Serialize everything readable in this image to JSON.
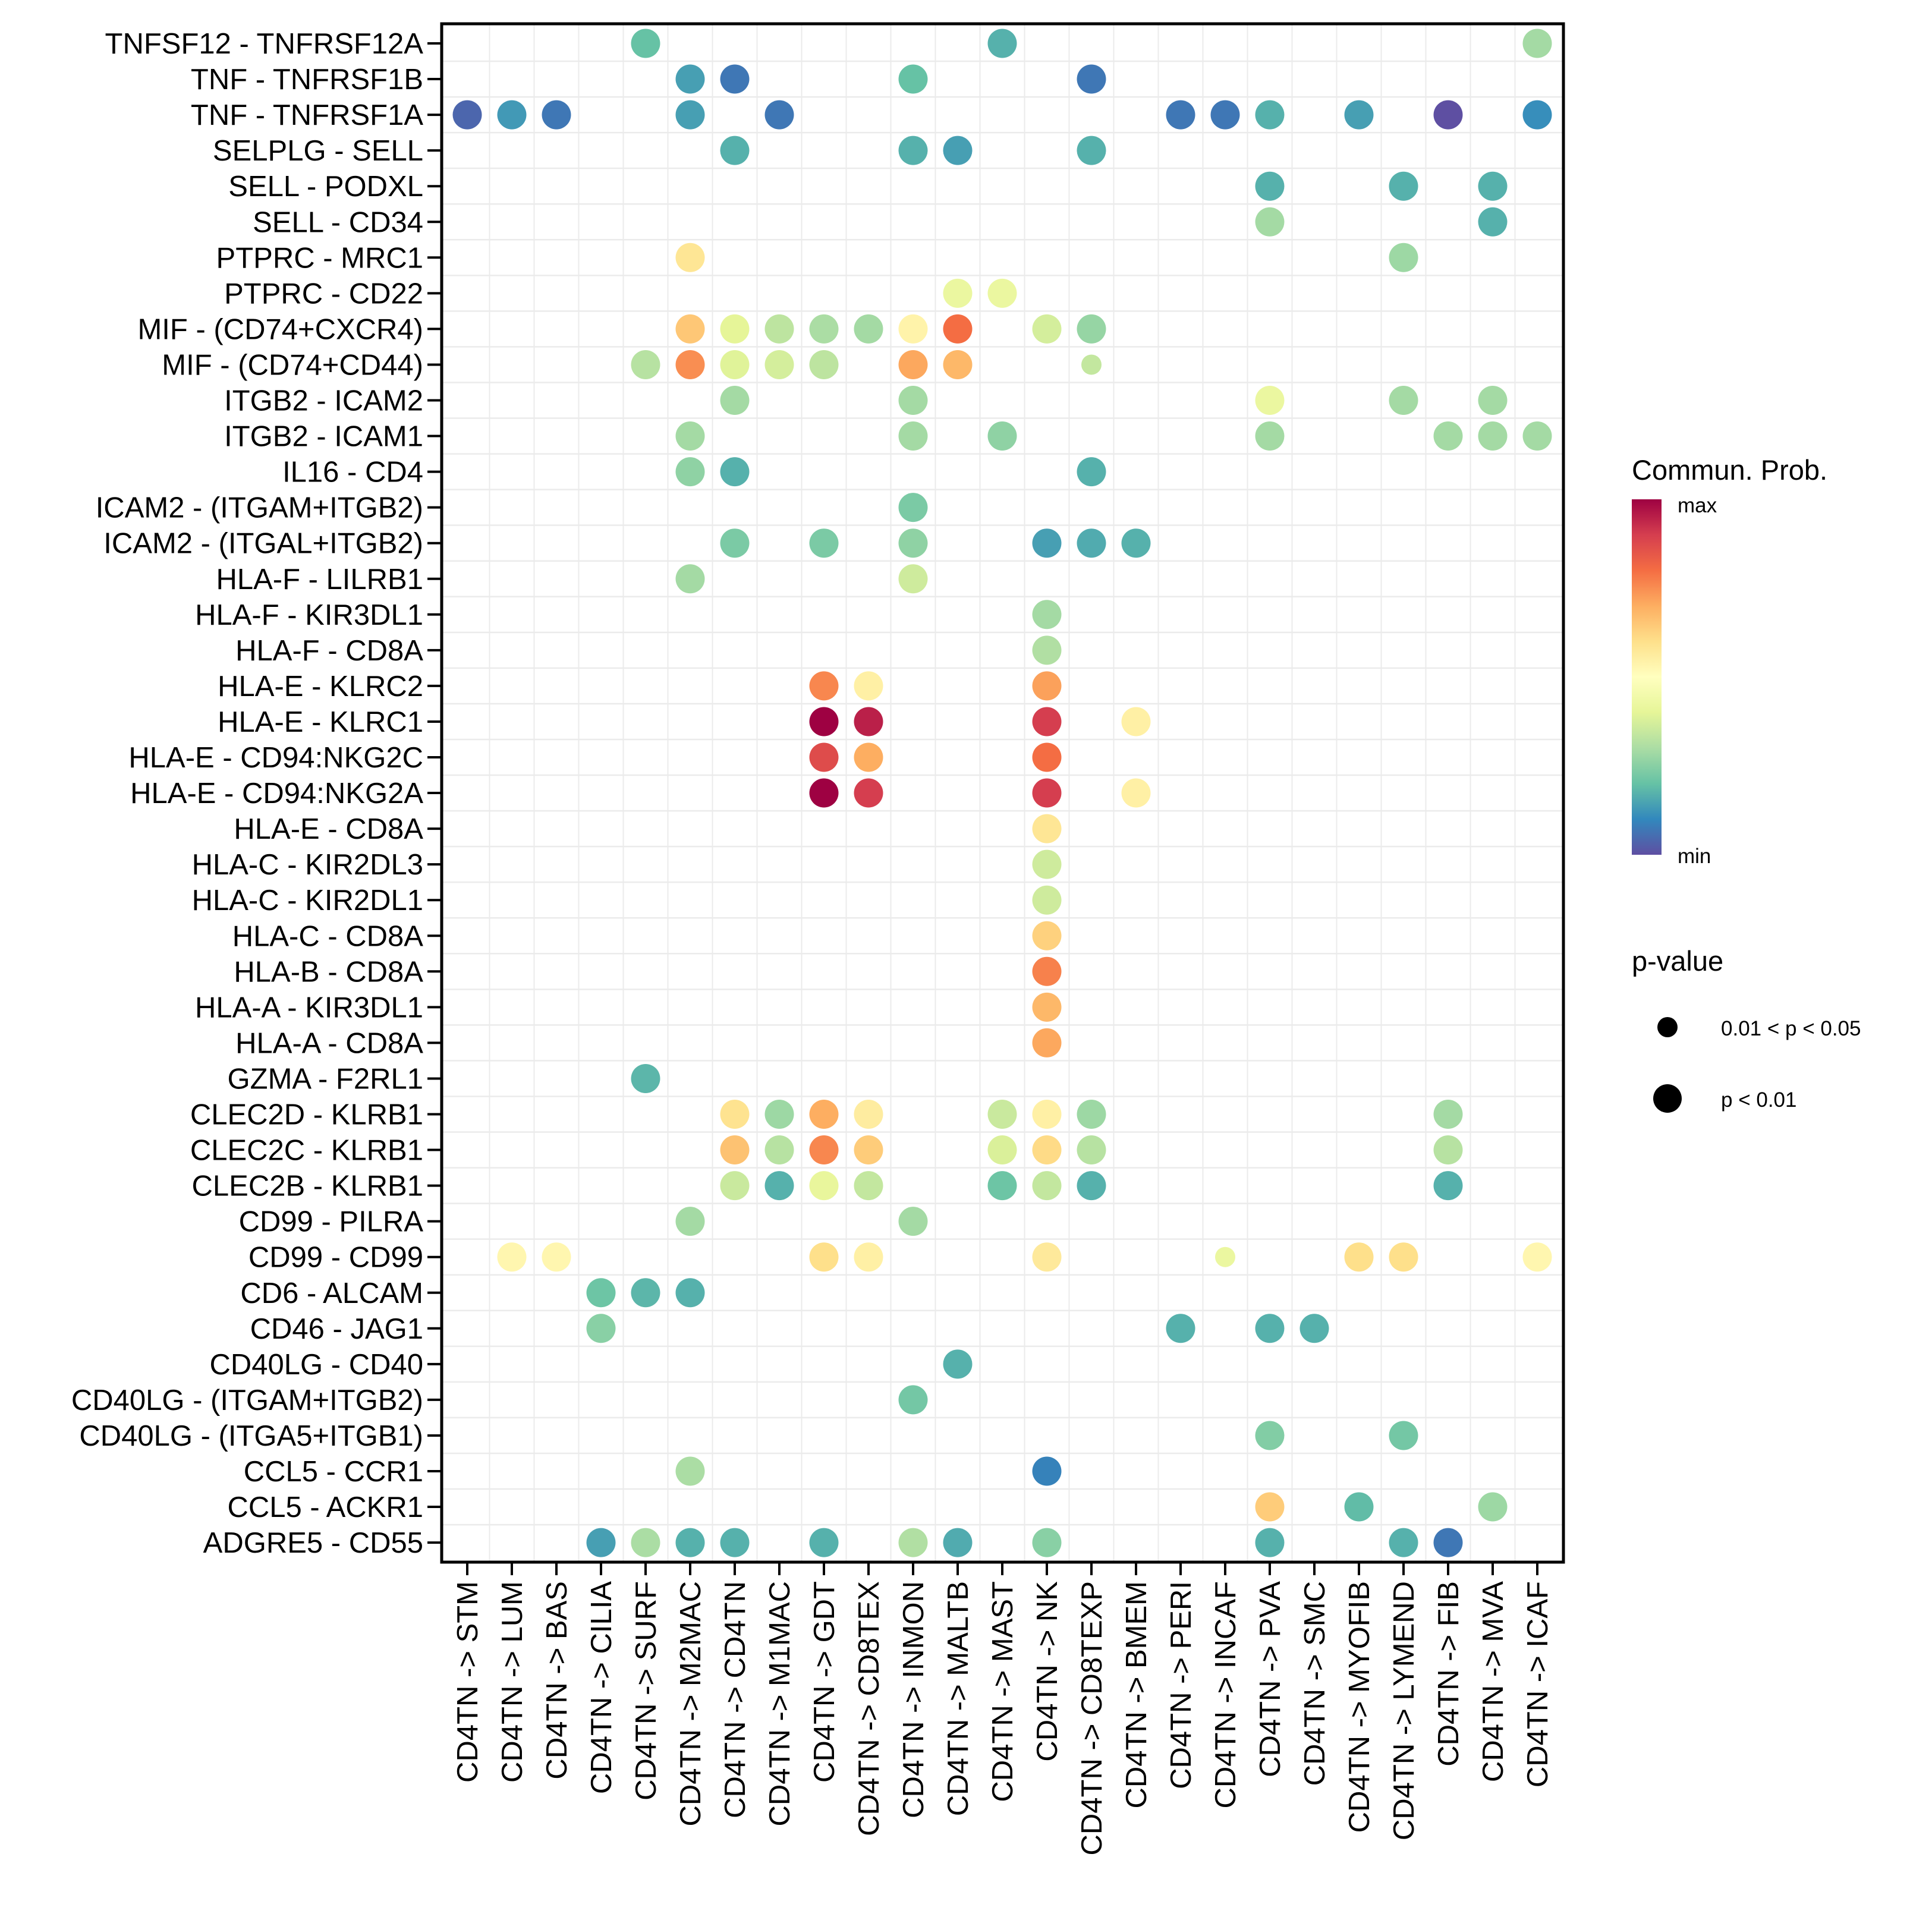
{
  "chart_data": {
    "type": "scatter",
    "subtype": "dot-matrix",
    "title": "",
    "xlabel": "",
    "ylabel": "",
    "grid": true,
    "x_categories": [
      "CD4TN -> STM",
      "CD4TN -> LUM",
      "CD4TN -> BAS",
      "CD4TN -> CILIA",
      "CD4TN -> SURF",
      "CD4TN -> M2MAC",
      "CD4TN -> CD4TN",
      "CD4TN -> M1MAC",
      "CD4TN -> GDT",
      "CD4TN -> CD8TEX",
      "CD4TN -> INMON",
      "CD4TN -> MALTB",
      "CD4TN -> MAST",
      "CD4TN -> NK",
      "CD4TN -> CD8TEXP",
      "CD4TN -> BMEM",
      "CD4TN -> PERI",
      "CD4TN -> INCAF",
      "CD4TN -> PVA",
      "CD4TN -> SMC",
      "CD4TN -> MYOFIB",
      "CD4TN -> LYMEND",
      "CD4TN -> FIB",
      "CD4TN -> MVA",
      "CD4TN -> ICAF"
    ],
    "y_categories": [
      "TNFSF12 - TNFRSF12A",
      "TNF - TNFRSF1B",
      "TNF - TNFRSF1A",
      "SELPLG - SELL",
      "SELL - PODXL",
      "SELL - CD34",
      "PTPRC - MRC1",
      "PTPRC - CD22",
      "MIF - (CD74+CXCR4)",
      "MIF - (CD74+CD44)",
      "ITGB2 - ICAM2",
      "ITGB2 - ICAM1",
      "IL16 - CD4",
      "ICAM2 - (ITGAM+ITGB2)",
      "ICAM2 - (ITGAL+ITGB2)",
      "HLA-F - LILRB1",
      "HLA-F - KIR3DL1",
      "HLA-F - CD8A",
      "HLA-E - KLRC2",
      "HLA-E - KLRC1",
      "HLA-E - CD94:NKG2C",
      "HLA-E - CD94:NKG2A",
      "HLA-E - CD8A",
      "HLA-C - KIR2DL3",
      "HLA-C - KIR2DL1",
      "HLA-C - CD8A",
      "HLA-B - CD8A",
      "HLA-A - KIR3DL1",
      "HLA-A - CD8A",
      "GZMA - F2RL1",
      "CLEC2D - KLRB1",
      "CLEC2C - KLRB1",
      "CLEC2B - KLRB1",
      "CD99 - PILRA",
      "CD99 - CD99",
      "CD6 - ALCAM",
      "CD46 - JAG1",
      "CD40LG - CD40",
      "CD40LG - (ITGAM+ITGB2)",
      "CD40LG - (ITGA5+ITGB1)",
      "CCL5 - CCR1",
      "CCL5 - ACKR1",
      "ADGRE5 - CD55"
    ],
    "value_scale": "relative communication probability, 0 = min, 1 = max",
    "points_fields": [
      "y_index",
      "x_index",
      "prob",
      "pvalue_class"
    ],
    "points": [
      [
        0,
        4,
        0.2,
        1
      ],
      [
        0,
        12,
        0.17,
        1
      ],
      [
        0,
        24,
        0.29,
        1
      ],
      [
        1,
        5,
        0.14,
        1
      ],
      [
        1,
        6,
        0.07,
        1
      ],
      [
        1,
        10,
        0.2,
        1
      ],
      [
        1,
        14,
        0.07,
        1
      ],
      [
        2,
        0,
        0.04,
        1
      ],
      [
        2,
        1,
        0.13,
        1
      ],
      [
        2,
        2,
        0.07,
        1
      ],
      [
        2,
        5,
        0.14,
        1
      ],
      [
        2,
        7,
        0.07,
        1
      ],
      [
        2,
        16,
        0.07,
        1
      ],
      [
        2,
        17,
        0.07,
        1
      ],
      [
        2,
        18,
        0.17,
        1
      ],
      [
        2,
        20,
        0.14,
        1
      ],
      [
        2,
        22,
        0.0,
        1
      ],
      [
        2,
        24,
        0.11,
        1
      ],
      [
        3,
        6,
        0.17,
        1
      ],
      [
        3,
        10,
        0.17,
        1
      ],
      [
        3,
        11,
        0.14,
        1
      ],
      [
        3,
        14,
        0.17,
        1
      ],
      [
        4,
        18,
        0.17,
        1
      ],
      [
        4,
        21,
        0.17,
        1
      ],
      [
        4,
        23,
        0.17,
        1
      ],
      [
        5,
        18,
        0.29,
        1
      ],
      [
        5,
        23,
        0.17,
        1
      ],
      [
        6,
        5,
        0.58,
        1
      ],
      [
        6,
        21,
        0.28,
        1
      ],
      [
        7,
        11,
        0.42,
        1
      ],
      [
        7,
        12,
        0.42,
        1
      ],
      [
        8,
        5,
        0.65,
        1
      ],
      [
        8,
        6,
        0.4,
        1
      ],
      [
        8,
        7,
        0.33,
        1
      ],
      [
        8,
        8,
        0.3,
        1
      ],
      [
        8,
        9,
        0.29,
        1
      ],
      [
        8,
        10,
        0.54,
        1
      ],
      [
        8,
        11,
        0.8,
        1
      ],
      [
        8,
        13,
        0.37,
        1
      ],
      [
        8,
        14,
        0.27,
        1
      ],
      [
        9,
        4,
        0.32,
        1
      ],
      [
        9,
        5,
        0.75,
        1
      ],
      [
        9,
        6,
        0.39,
        1
      ],
      [
        9,
        7,
        0.37,
        1
      ],
      [
        9,
        8,
        0.33,
        1
      ],
      [
        9,
        10,
        0.71,
        1
      ],
      [
        9,
        11,
        0.68,
        1
      ],
      [
        9,
        14,
        0.34,
        0
      ],
      [
        10,
        6,
        0.29,
        1
      ],
      [
        10,
        10,
        0.29,
        1
      ],
      [
        10,
        18,
        0.42,
        1
      ],
      [
        10,
        21,
        0.29,
        1
      ],
      [
        10,
        23,
        0.29,
        1
      ],
      [
        11,
        5,
        0.29,
        1
      ],
      [
        11,
        10,
        0.29,
        1
      ],
      [
        11,
        12,
        0.26,
        1
      ],
      [
        11,
        18,
        0.29,
        1
      ],
      [
        11,
        22,
        0.29,
        1
      ],
      [
        11,
        23,
        0.29,
        1
      ],
      [
        11,
        24,
        0.29,
        1
      ],
      [
        12,
        5,
        0.26,
        1
      ],
      [
        12,
        6,
        0.17,
        1
      ],
      [
        12,
        14,
        0.17,
        1
      ],
      [
        13,
        10,
        0.23,
        1
      ],
      [
        14,
        6,
        0.23,
        1
      ],
      [
        14,
        8,
        0.23,
        1
      ],
      [
        14,
        10,
        0.26,
        1
      ],
      [
        14,
        13,
        0.14,
        1
      ],
      [
        14,
        14,
        0.16,
        1
      ],
      [
        14,
        15,
        0.17,
        1
      ],
      [
        15,
        5,
        0.29,
        1
      ],
      [
        15,
        10,
        0.36,
        1
      ],
      [
        16,
        13,
        0.29,
        1
      ],
      [
        17,
        13,
        0.31,
        1
      ],
      [
        18,
        8,
        0.76,
        1
      ],
      [
        18,
        9,
        0.55,
        1
      ],
      [
        18,
        13,
        0.72,
        1
      ],
      [
        19,
        8,
        1.0,
        1
      ],
      [
        19,
        9,
        0.95,
        1
      ],
      [
        19,
        13,
        0.9,
        1
      ],
      [
        19,
        15,
        0.55,
        1
      ],
      [
        20,
        8,
        0.87,
        1
      ],
      [
        20,
        9,
        0.7,
        1
      ],
      [
        20,
        13,
        0.8,
        1
      ],
      [
        21,
        8,
        1.0,
        1
      ],
      [
        21,
        9,
        0.9,
        1
      ],
      [
        21,
        13,
        0.9,
        1
      ],
      [
        21,
        15,
        0.55,
        1
      ],
      [
        22,
        13,
        0.58,
        1
      ],
      [
        23,
        13,
        0.36,
        1
      ],
      [
        24,
        13,
        0.36,
        1
      ],
      [
        25,
        13,
        0.63,
        1
      ],
      [
        26,
        13,
        0.77,
        1
      ],
      [
        27,
        13,
        0.68,
        1
      ],
      [
        28,
        13,
        0.71,
        1
      ],
      [
        29,
        4,
        0.18,
        1
      ],
      [
        30,
        6,
        0.59,
        1
      ],
      [
        30,
        7,
        0.28,
        1
      ],
      [
        30,
        8,
        0.7,
        1
      ],
      [
        30,
        9,
        0.56,
        1
      ],
      [
        30,
        12,
        0.35,
        1
      ],
      [
        30,
        13,
        0.55,
        1
      ],
      [
        30,
        14,
        0.28,
        1
      ],
      [
        30,
        22,
        0.29,
        1
      ],
      [
        31,
        6,
        0.66,
        1
      ],
      [
        31,
        7,
        0.32,
        1
      ],
      [
        31,
        8,
        0.76,
        1
      ],
      [
        31,
        9,
        0.64,
        1
      ],
      [
        31,
        12,
        0.38,
        1
      ],
      [
        31,
        13,
        0.61,
        1
      ],
      [
        31,
        14,
        0.32,
        1
      ],
      [
        31,
        22,
        0.32,
        1
      ],
      [
        32,
        6,
        0.35,
        1
      ],
      [
        32,
        7,
        0.17,
        1
      ],
      [
        32,
        8,
        0.41,
        1
      ],
      [
        32,
        9,
        0.34,
        1
      ],
      [
        32,
        12,
        0.21,
        1
      ],
      [
        32,
        13,
        0.34,
        1
      ],
      [
        32,
        14,
        0.17,
        1
      ],
      [
        32,
        22,
        0.17,
        1
      ],
      [
        33,
        5,
        0.29,
        1
      ],
      [
        33,
        10,
        0.29,
        1
      ],
      [
        34,
        1,
        0.53,
        1
      ],
      [
        34,
        2,
        0.53,
        1
      ],
      [
        34,
        8,
        0.6,
        1
      ],
      [
        34,
        9,
        0.55,
        1
      ],
      [
        34,
        13,
        0.57,
        1
      ],
      [
        34,
        17,
        0.42,
        0
      ],
      [
        34,
        20,
        0.6,
        1
      ],
      [
        34,
        21,
        0.6,
        1
      ],
      [
        34,
        24,
        0.53,
        1
      ],
      [
        35,
        3,
        0.21,
        1
      ],
      [
        35,
        4,
        0.18,
        1
      ],
      [
        35,
        5,
        0.17,
        1
      ],
      [
        36,
        3,
        0.25,
        1
      ],
      [
        36,
        16,
        0.17,
        1
      ],
      [
        36,
        18,
        0.17,
        1
      ],
      [
        36,
        19,
        0.17,
        1
      ],
      [
        37,
        11,
        0.17,
        1
      ],
      [
        38,
        10,
        0.22,
        1
      ],
      [
        39,
        18,
        0.24,
        1
      ],
      [
        39,
        21,
        0.22,
        1
      ],
      [
        40,
        5,
        0.3,
        1
      ],
      [
        40,
        13,
        0.09,
        1
      ],
      [
        41,
        18,
        0.64,
        1
      ],
      [
        41,
        20,
        0.19,
        1
      ],
      [
        41,
        23,
        0.28,
        1
      ],
      [
        42,
        3,
        0.14,
        1
      ],
      [
        42,
        4,
        0.3,
        1
      ],
      [
        42,
        5,
        0.17,
        1
      ],
      [
        42,
        6,
        0.17,
        1
      ],
      [
        42,
        8,
        0.17,
        1
      ],
      [
        42,
        10,
        0.31,
        1
      ],
      [
        42,
        11,
        0.16,
        1
      ],
      [
        42,
        13,
        0.25,
        1
      ],
      [
        42,
        18,
        0.17,
        1
      ],
      [
        42,
        21,
        0.17,
        1
      ],
      [
        42,
        22,
        0.07,
        1
      ]
    ],
    "pvalue_classes": [
      "0.01 < p < 0.05",
      "p < 0.01"
    ],
    "legend": {
      "color_title": "Commun. Prob.",
      "color_max_label": "max",
      "color_min_label": "min",
      "palette": [
        "#5E4FA2",
        "#3288BD",
        "#66C2A5",
        "#ABDDA4",
        "#E6F598",
        "#FFFFBF",
        "#FEE08B",
        "#FDAE61",
        "#F46D43",
        "#D53E4F",
        "#9E0142"
      ],
      "size_title": "p-value",
      "size_labels": [
        "0.01 < p < 0.05",
        "p < 0.01"
      ],
      "placement": "right"
    }
  }
}
